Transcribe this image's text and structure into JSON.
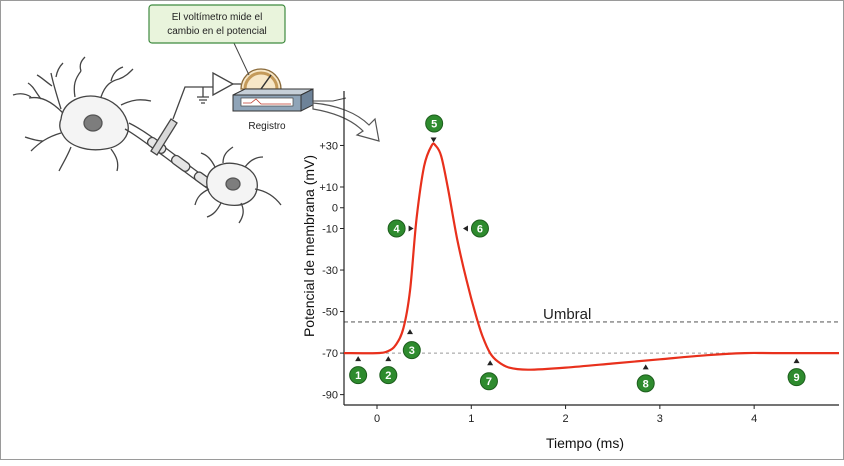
{
  "callout": {
    "line1": "El voltímetro mide el",
    "line2": "cambio en el potencial"
  },
  "recorder_label": "Registro",
  "threshold_label": "Umbral",
  "axes": {
    "ylabel": "Potencial de membrana (mV)",
    "xlabel": "Tiempo (ms)"
  },
  "markers": [
    "1",
    "2",
    "3",
    "4",
    "5",
    "6",
    "7",
    "8",
    "9"
  ],
  "colors": {
    "trace": "#e8301c",
    "marker": "#2e8b2e",
    "callout_bg": "#e9f4dc",
    "callout_border": "#3f8a3f",
    "axis": "#222222",
    "reference_line": "#666666"
  },
  "chart_data": {
    "type": "line",
    "xlabel": "Tiempo (ms)",
    "ylabel": "Potencial de membrana (mV)",
    "xlim": [
      -0.35,
      4.9
    ],
    "ylim": [
      -95,
      36
    ],
    "x_ticks": [
      0,
      1,
      2,
      3,
      4
    ],
    "y_ticks": [
      30,
      10,
      0,
      -10,
      -30,
      -50,
      -70,
      -90
    ],
    "y_tick_labels": [
      "+30",
      "+10",
      "0",
      "-10",
      "-30",
      "-50",
      "-70",
      "-90"
    ],
    "threshold_mV": -55,
    "resting_mV": -70,
    "series": [
      {
        "x": [
          -0.35,
          0.0,
          0.12,
          0.2,
          0.28,
          0.35,
          0.42,
          0.5,
          0.58,
          0.62,
          0.68,
          0.75,
          0.85,
          0.95,
          1.05,
          1.12,
          1.2,
          1.28,
          1.4,
          1.6,
          2.0,
          2.5,
          3.0,
          3.5,
          3.9,
          4.2,
          4.9
        ],
        "y": [
          -70,
          -70,
          -69,
          -66,
          -58,
          -40,
          -5,
          20,
          30,
          30,
          25,
          10,
          -15,
          -35,
          -52,
          -62,
          -70,
          -74,
          -77,
          -78,
          -77,
          -75,
          -73,
          -71,
          -70,
          -70,
          -70
        ]
      }
    ],
    "stage_markers": [
      {
        "label": "1",
        "x": -0.2,
        "y": -70
      },
      {
        "label": "2",
        "x": 0.12,
        "y": -70
      },
      {
        "label": "3",
        "x": 0.35,
        "y": -57
      },
      {
        "label": "4",
        "x": 0.42,
        "y": -10
      },
      {
        "label": "5",
        "x": 0.6,
        "y": 30
      },
      {
        "label": "6",
        "x": 0.88,
        "y": -10
      },
      {
        "label": "7",
        "x": 1.2,
        "y": -72
      },
      {
        "label": "8",
        "x": 2.85,
        "y": -74
      },
      {
        "label": "9",
        "x": 4.45,
        "y": -71
      }
    ]
  }
}
